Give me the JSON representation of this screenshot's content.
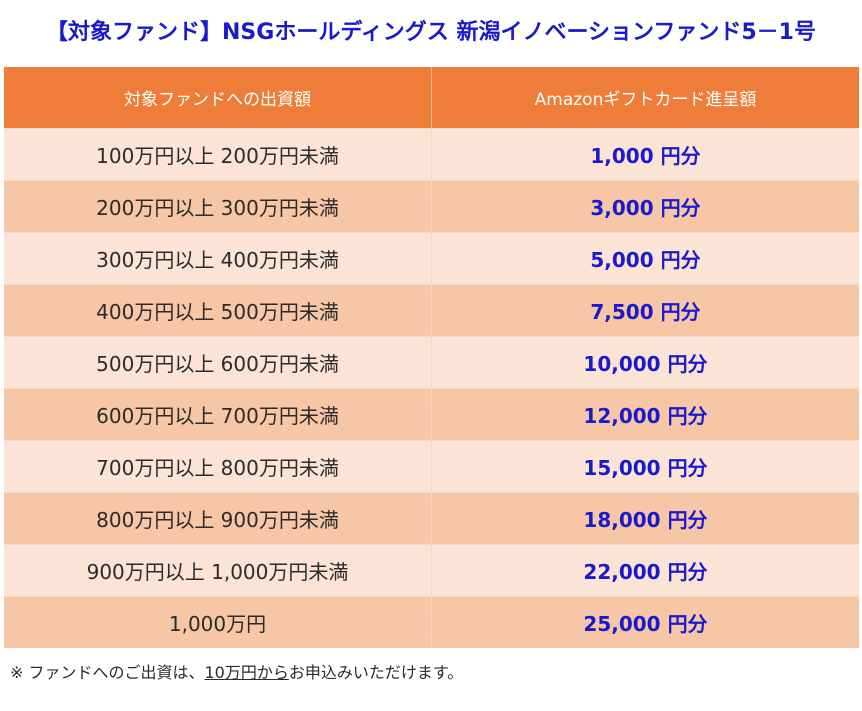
{
  "title": "【対象ファンド】NSGホールディングス 新潟イノベーションファンド5－1号",
  "table": {
    "headers": [
      "対象ファンドへの出資額",
      "Amazonギフトカード進呈額"
    ],
    "rows": [
      {
        "amount": "100万円以上 200万円未満",
        "reward": "1,000 円分"
      },
      {
        "amount": "200万円以上 300万円未満",
        "reward": "3,000 円分"
      },
      {
        "amount": "300万円以上 400万円未満",
        "reward": "5,000 円分"
      },
      {
        "amount": "400万円以上 500万円未満",
        "reward": "7,500 円分"
      },
      {
        "amount": "500万円以上 600万円未満",
        "reward": "10,000 円分"
      },
      {
        "amount": "600万円以上 700万円未満",
        "reward": "12,000 円分"
      },
      {
        "amount": "700万円以上 800万円未満",
        "reward": "15,000 円分"
      },
      {
        "amount": "800万円以上 900万円未満",
        "reward": "18,000 円分"
      },
      {
        "amount": "900万円以上 1,000万円未満",
        "reward": "22,000 円分"
      },
      {
        "amount": "1,000万円",
        "reward": "25,000 円分"
      }
    ]
  },
  "note": {
    "prefix": "※ ファンドへのご出資は、",
    "underlined": "10万円から",
    "suffix": "お申込みいただけます。"
  },
  "colors": {
    "title": "#1a1acc",
    "header_bg": "#ee7d39",
    "row_light": "#fbe3d6",
    "row_dark": "#f7c6a6",
    "reward_text": "#1a1acc"
  }
}
